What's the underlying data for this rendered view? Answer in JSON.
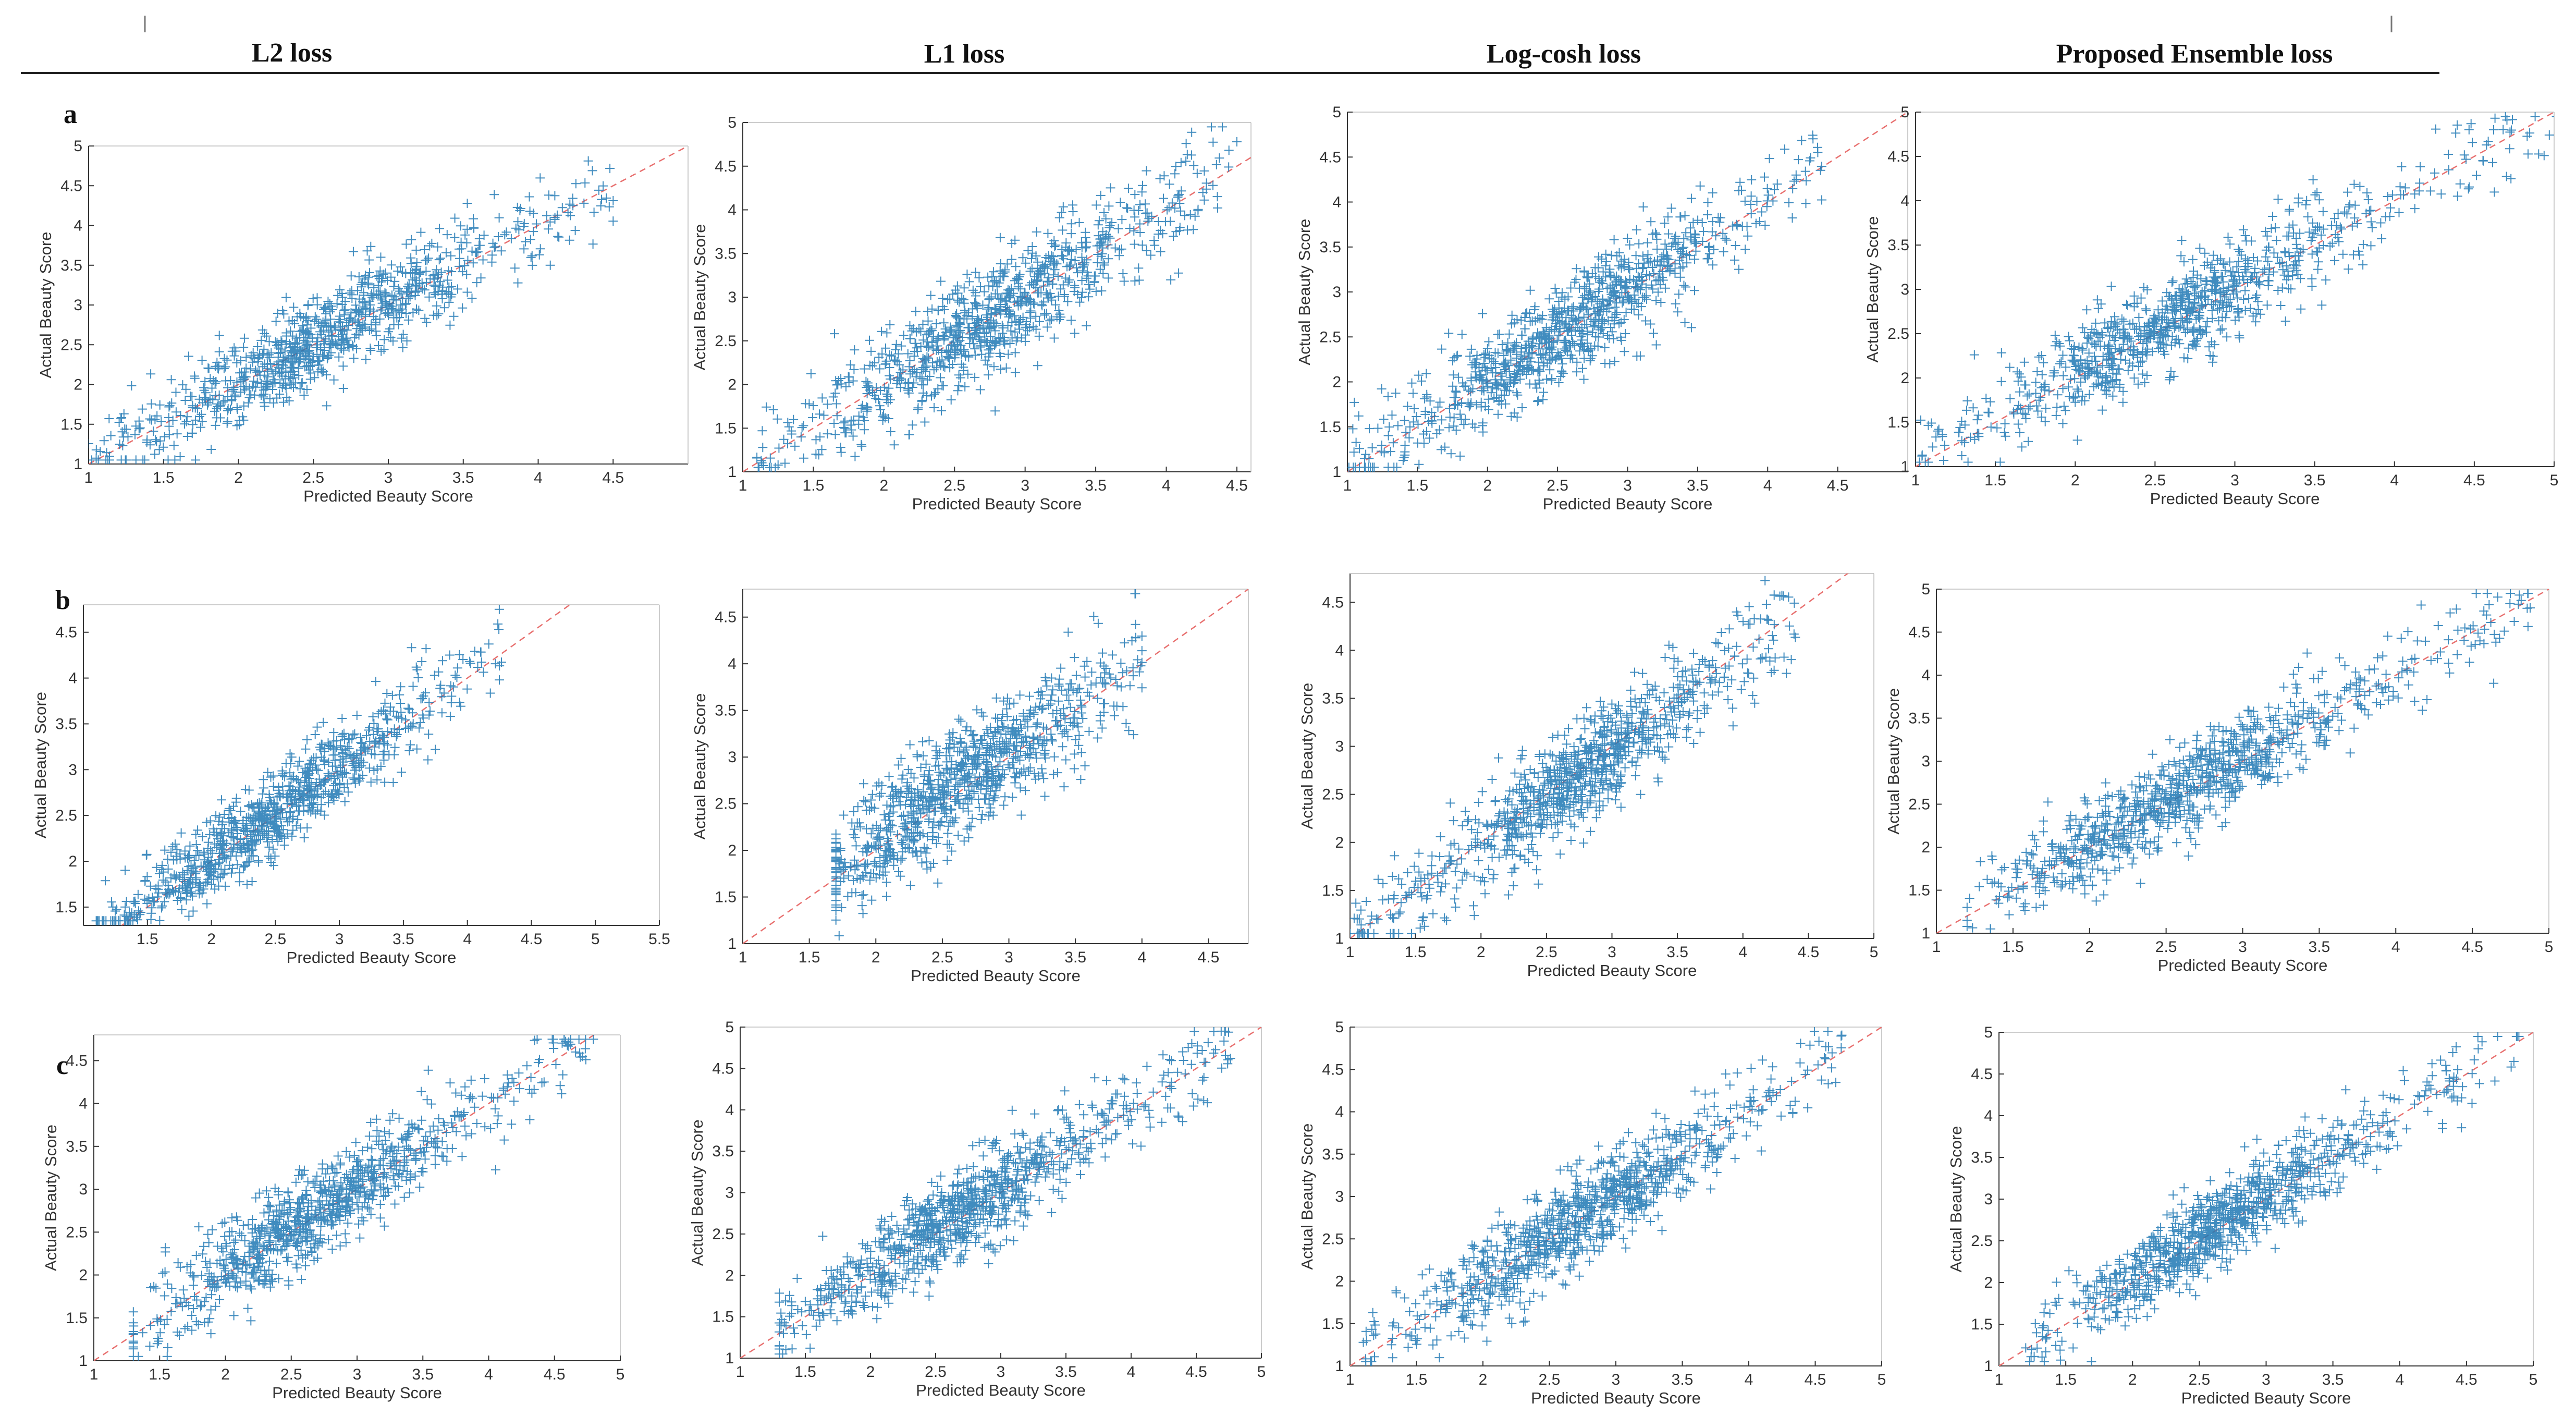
{
  "figure": {
    "columns": [
      "L2 loss",
      "L1 loss",
      "Log-cosh loss",
      "Proposed Ensemble loss"
    ],
    "rows": [
      "a",
      "b",
      "c"
    ]
  },
  "colors": {
    "marker": "#1f78b4",
    "reference": "#e8706f",
    "axis": "#333333",
    "header_rule": "#222222"
  },
  "chart_data": [
    {
      "id": "a-l2",
      "type": "scatter",
      "row": "a",
      "title": "L2 loss",
      "xlabel": "Predicted Beauty Score",
      "ylabel": "Actual Beauty Score",
      "xlim": [
        1,
        5
      ],
      "ylim": [
        1,
        5
      ],
      "xticks": [
        "1",
        "1.5",
        "2",
        "2.5",
        "3",
        "3.5",
        "4",
        "4.5"
      ],
      "yticks": [
        "1",
        "1.5",
        "2",
        "2.5",
        "3",
        "3.5",
        "4",
        "4.5",
        "5"
      ],
      "reference_line": [
        [
          1,
          1
        ],
        [
          5,
          5
        ]
      ],
      "cluster": {
        "center": [
          2.6,
          2.7
        ],
        "n": 900,
        "xrange": [
          1.0,
          4.5
        ],
        "noise": 0.28
      },
      "seed": 11
    },
    {
      "id": "a-l1",
      "type": "scatter",
      "row": "a",
      "title": "L1 loss",
      "xlabel": "Predicted Beauty Score",
      "ylabel": "Actual Beauty Score",
      "xlim": [
        1,
        4.6
      ],
      "ylim": [
        1,
        5
      ],
      "xticks": [
        "1",
        "1.5",
        "2",
        "2.5",
        "3",
        "3.5",
        "4",
        "4.5"
      ],
      "yticks": [
        "1",
        "1.5",
        "2",
        "2.5",
        "3",
        "3.5",
        "4",
        "4.5",
        "5"
      ],
      "reference_line": [
        [
          1,
          1
        ],
        [
          4.6,
          4.6
        ]
      ],
      "cluster": {
        "center": [
          2.7,
          2.7
        ],
        "n": 900,
        "xrange": [
          1.1,
          4.5
        ],
        "noise": 0.3
      },
      "seed": 23
    },
    {
      "id": "a-logcosh",
      "type": "scatter",
      "row": "a",
      "title": "Log-cosh loss",
      "xlabel": "Predicted Beauty Score",
      "ylabel": "Actual Beauty Score",
      "xlim": [
        1,
        5
      ],
      "ylim": [
        1,
        5
      ],
      "xticks": [
        "1",
        "1.5",
        "2",
        "2.5",
        "3",
        "3.5",
        "4",
        "4.5"
      ],
      "yticks": [
        "1",
        "1.5",
        "2",
        "2.5",
        "3",
        "3.5",
        "4",
        "4.5",
        "5"
      ],
      "reference_line": [
        [
          1,
          1
        ],
        [
          5,
          5
        ]
      ],
      "cluster": {
        "center": [
          2.6,
          2.7
        ],
        "n": 900,
        "xrange": [
          1.0,
          4.4
        ],
        "noise": 0.28
      },
      "seed": 37
    },
    {
      "id": "a-ensemble",
      "type": "scatter",
      "row": "a",
      "title": "Proposed Ensemble loss",
      "xlabel": "Predicted Beauty Score",
      "ylabel": "Actual Beauty Score",
      "xlim": [
        1,
        5
      ],
      "ylim": [
        1,
        5
      ],
      "xticks": [
        "1",
        "1.5",
        "2",
        "2.5",
        "3",
        "3.5",
        "4",
        "4.5",
        "5"
      ],
      "yticks": [
        "1",
        "1.5",
        "2",
        "2.5",
        "3",
        "3.5",
        "4",
        "4.5",
        "5"
      ],
      "reference_line": [
        [
          1,
          1
        ],
        [
          5,
          5
        ]
      ],
      "cluster": {
        "center": [
          2.6,
          2.7
        ],
        "n": 900,
        "xrange": [
          1.0,
          5.2
        ],
        "noise": 0.27
      },
      "seed": 41
    },
    {
      "id": "b-l2",
      "type": "scatter",
      "row": "b",
      "title": "L2 loss",
      "xlabel": "Predicted Beauty Score",
      "ylabel": "Actual Beauty Score",
      "xlim": [
        1,
        5.5
      ],
      "ylim": [
        1.3,
        4.8
      ],
      "xticks": [
        "1.5",
        "2",
        "2.5",
        "3",
        "3.5",
        "4",
        "4.5",
        "5",
        "5.5"
      ],
      "yticks": [
        "1.5",
        "2",
        "2.5",
        "3",
        "3.5",
        "4",
        "4.5"
      ],
      "reference_line": [
        [
          1,
          1
        ],
        [
          5.5,
          5.5
        ]
      ],
      "cluster": {
        "center": [
          2.5,
          2.6
        ],
        "n": 900,
        "xrange": [
          1.1,
          4.3
        ],
        "noise": 0.22
      },
      "seed": 53
    },
    {
      "id": "b-l1",
      "type": "scatter",
      "row": "b",
      "title": "L1 loss",
      "xlabel": "Predicted Beauty Score",
      "ylabel": "Actual Beauty Score",
      "xlim": [
        1,
        4.8
      ],
      "ylim": [
        1,
        4.8
      ],
      "xticks": [
        "1",
        "1.5",
        "2",
        "2.5",
        "3",
        "3.5",
        "4",
        "4.5"
      ],
      "yticks": [
        "1",
        "1.5",
        "2",
        "2.5",
        "3",
        "3.5",
        "4",
        "4.5"
      ],
      "reference_line": [
        [
          1,
          1
        ],
        [
          4.8,
          4.8
        ]
      ],
      "cluster": {
        "center": [
          2.6,
          2.8
        ],
        "n": 900,
        "xrange": [
          1.7,
          4.0
        ],
        "noise": 0.3
      },
      "seed": 67
    },
    {
      "id": "b-logcosh",
      "type": "scatter",
      "row": "b",
      "title": "Log-cosh loss",
      "xlabel": "Predicted Beauty Score",
      "ylabel": "Actual Beauty Score",
      "xlim": [
        1,
        5
      ],
      "ylim": [
        1,
        4.8
      ],
      "xticks": [
        "1",
        "1.5",
        "2",
        "2.5",
        "3",
        "3.5",
        "4",
        "4.5",
        "5"
      ],
      "yticks": [
        "1",
        "1.5",
        "2",
        "2.5",
        "3",
        "3.5",
        "4",
        "4.5"
      ],
      "reference_line": [
        [
          1,
          1
        ],
        [
          5,
          5
        ]
      ],
      "cluster": {
        "center": [
          2.8,
          2.7
        ],
        "n": 900,
        "xrange": [
          1.0,
          4.4
        ],
        "noise": 0.27
      },
      "seed": 71
    },
    {
      "id": "b-ensemble",
      "type": "scatter",
      "row": "b",
      "title": "Proposed Ensemble loss",
      "xlabel": "Predicted Beauty Score",
      "ylabel": "Actual Beauty Score",
      "xlim": [
        1,
        5
      ],
      "ylim": [
        1,
        5
      ],
      "xticks": [
        "1",
        "1.5",
        "2",
        "2.5",
        "3",
        "3.5",
        "4",
        "4.5",
        "5"
      ],
      "yticks": [
        "1",
        "1.5",
        "2",
        "2.5",
        "3",
        "3.5",
        "4",
        "4.5",
        "5"
      ],
      "reference_line": [
        [
          1,
          1
        ],
        [
          5,
          5
        ]
      ],
      "cluster": {
        "center": [
          2.6,
          2.7
        ],
        "n": 900,
        "xrange": [
          1.2,
          4.9
        ],
        "noise": 0.25
      },
      "seed": 83
    },
    {
      "id": "c-l2",
      "type": "scatter",
      "row": "c",
      "title": "L2 loss",
      "xlabel": "Predicted Beauty Score",
      "ylabel": "Actual Beauty Score",
      "xlim": [
        1,
        5
      ],
      "ylim": [
        1,
        4.8
      ],
      "xticks": [
        "1",
        "1.5",
        "2",
        "2.5",
        "3",
        "3.5",
        "4",
        "4.5",
        "5"
      ],
      "yticks": [
        "1",
        "1.5",
        "2",
        "2.5",
        "3",
        "3.5",
        "4",
        "4.5"
      ],
      "reference_line": [
        [
          1,
          1
        ],
        [
          5,
          5
        ]
      ],
      "cluster": {
        "center": [
          2.6,
          2.7
        ],
        "n": 900,
        "xrange": [
          1.3,
          4.8
        ],
        "noise": 0.26
      },
      "seed": 97
    },
    {
      "id": "c-l1",
      "type": "scatter",
      "row": "c",
      "title": "L1 loss",
      "xlabel": "Predicted Beauty Score",
      "ylabel": "Actual Beauty Score",
      "xlim": [
        1,
        5
      ],
      "ylim": [
        1,
        5
      ],
      "xticks": [
        "1",
        "1.5",
        "2",
        "2.5",
        "3",
        "3.5",
        "4",
        "4.5",
        "5"
      ],
      "yticks": [
        "1",
        "1.5",
        "2",
        "2.5",
        "3",
        "3.5",
        "4",
        "4.5",
        "5"
      ],
      "reference_line": [
        [
          1,
          1
        ],
        [
          5,
          5
        ]
      ],
      "cluster": {
        "center": [
          2.6,
          2.7
        ],
        "n": 900,
        "xrange": [
          1.3,
          4.8
        ],
        "noise": 0.27
      },
      "seed": 103
    },
    {
      "id": "c-logcosh",
      "type": "scatter",
      "row": "c",
      "title": "Log-cosh loss",
      "xlabel": "Predicted Beauty Score",
      "ylabel": "Actual Beauty Score",
      "xlim": [
        1,
        5
      ],
      "ylim": [
        1,
        5
      ],
      "xticks": [
        "1",
        "1.5",
        "2",
        "2.5",
        "3",
        "3.5",
        "4",
        "4.5",
        "5"
      ],
      "yticks": [
        "1",
        "1.5",
        "2",
        "2.5",
        "3",
        "3.5",
        "4",
        "4.5",
        "5"
      ],
      "reference_line": [
        [
          1,
          1
        ],
        [
          5,
          5
        ]
      ],
      "cluster": {
        "center": [
          2.7,
          2.7
        ],
        "n": 900,
        "xrange": [
          1.1,
          4.7
        ],
        "noise": 0.27
      },
      "seed": 109
    },
    {
      "id": "c-ensemble",
      "type": "scatter",
      "row": "c",
      "title": "Proposed Ensemble loss",
      "xlabel": "Predicted Beauty Score",
      "ylabel": "Actual Beauty Score",
      "xlim": [
        1,
        5
      ],
      "ylim": [
        1,
        5
      ],
      "xticks": [
        "1",
        "1.5",
        "2",
        "2.5",
        "3",
        "3.5",
        "4",
        "4.5",
        "5"
      ],
      "yticks": [
        "1",
        "1.5",
        "2",
        "2.5",
        "3",
        "3.5",
        "4",
        "4.5",
        "5"
      ],
      "reference_line": [
        [
          1,
          1
        ],
        [
          5,
          5
        ]
      ],
      "cluster": {
        "center": [
          2.6,
          2.7
        ],
        "n": 900,
        "xrange": [
          1.2,
          4.9
        ],
        "noise": 0.24
      },
      "seed": 113
    }
  ]
}
